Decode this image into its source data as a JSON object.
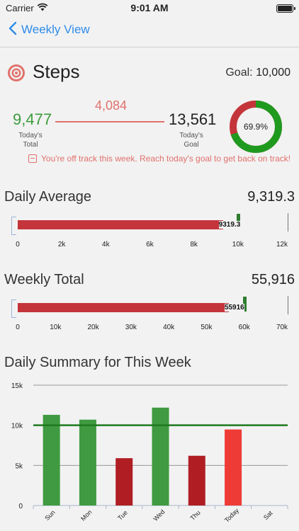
{
  "status_bar": {
    "carrier": "Carrier",
    "time": "9:01 AM"
  },
  "nav": {
    "back_label": "Weekly View"
  },
  "steps": {
    "title": "Steps",
    "goal_label": "Goal:",
    "goal_value": "10,000",
    "today_total": "9,477",
    "today_total_label": "Today's\nTotal",
    "difference": "4,084",
    "today_goal": "13,561",
    "today_goal_label": "Today's\nGoal",
    "progress_percent_label": "69.9%",
    "progress_fraction": 0.699,
    "warning": "You're off track this week.  Reach today's goal to get back on track!"
  },
  "colors": {
    "accent_blue": "#2f8ce8",
    "green": "#3c9c3c",
    "red": "#c4353b",
    "coral": "#e0716c"
  },
  "daily_average": {
    "title": "Daily Average",
    "value": "9,319.3",
    "bar_label": "9319.3",
    "ticks": [
      "0",
      "2k",
      "4k",
      "6k",
      "8k",
      "10k",
      "12k"
    ],
    "chart_data": {
      "type": "bar",
      "orientation": "horizontal",
      "value": 9319.3,
      "target": 10000,
      "xlim": [
        0,
        12000
      ]
    }
  },
  "weekly_total": {
    "title": "Weekly Total",
    "value": "55,916",
    "bar_label": "55916",
    "ticks": [
      "0",
      "10k",
      "20k",
      "30k",
      "40k",
      "50k",
      "60k",
      "70k"
    ],
    "chart_data": {
      "type": "bar",
      "orientation": "horizontal",
      "value": 55916,
      "target": 60000,
      "xlim": [
        0,
        70000
      ]
    }
  },
  "daily_summary": {
    "title": "Daily Summary for This Week",
    "chart_data": {
      "type": "bar",
      "categories": [
        "Sun",
        "Mon",
        "Tue",
        "Wed",
        "Thu",
        "Today",
        "Sat"
      ],
      "values": [
        11300,
        10700,
        5900,
        12200,
        6200,
        9477,
        0
      ],
      "bar_colors": [
        "#3f9a41",
        "#3f9a41",
        "#b01e24",
        "#3f9a41",
        "#b01e24",
        "#ef3b36",
        ""
      ],
      "goal_line": 10000,
      "yticks": [
        "0",
        "5k",
        "10k",
        "15k"
      ],
      "ylim": [
        0,
        15000
      ],
      "grid": true
    }
  }
}
